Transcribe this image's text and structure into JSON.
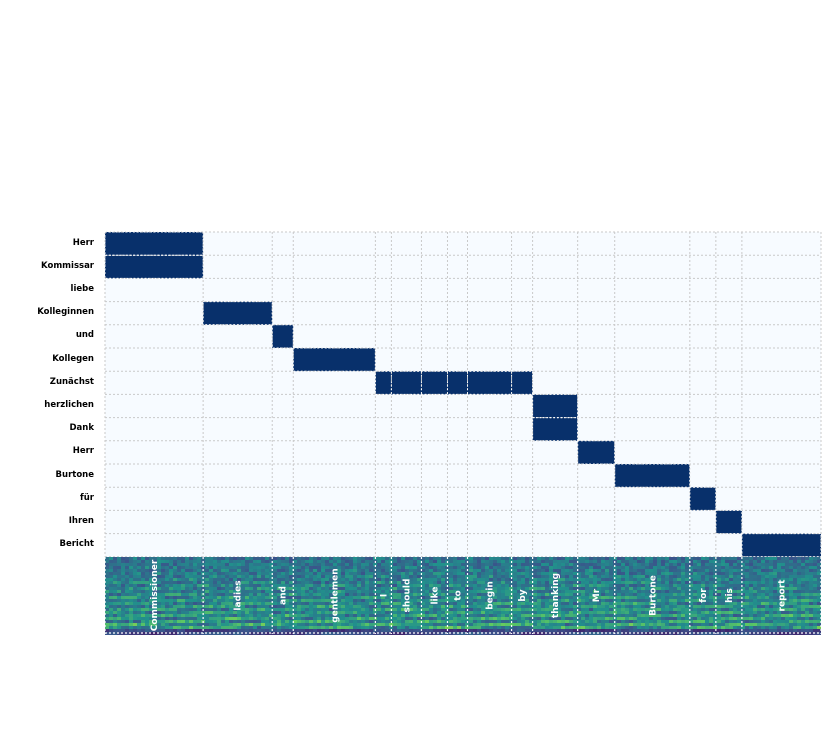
{
  "chart_data": {
    "type": "heatmap",
    "title": "",
    "xlabel": "",
    "ylabel": "",
    "grid": true,
    "rows": [
      "Herr",
      "Kommissar",
      "liebe",
      "Kolleginnen",
      "und",
      "Kollegen",
      "Zunächst",
      "herzlichen",
      "Dank",
      "Herr",
      "Burtone",
      "für",
      "Ihren",
      "Bericht"
    ],
    "columns": [
      "Commissioner",
      "ladies",
      "and",
      "gentlemen",
      "I",
      "should",
      "like",
      "to",
      "begin",
      "by",
      "thanking",
      "Mr",
      "Burtone",
      "for",
      "his",
      "report"
    ],
    "column_durations": [
      0.98,
      0.69,
      0.21,
      0.82,
      0.16,
      0.3,
      0.26,
      0.2,
      0.44,
      0.21,
      0.45,
      0.37,
      0.75,
      0.26,
      0.26,
      0.79
    ],
    "alignment": [
      {
        "row": 0,
        "columns": [
          0
        ]
      },
      {
        "row": 1,
        "columns": [
          0
        ]
      },
      {
        "row": 3,
        "columns": [
          1
        ]
      },
      {
        "row": 4,
        "columns": [
          2
        ]
      },
      {
        "row": 5,
        "columns": [
          3
        ]
      },
      {
        "row": 6,
        "columns": [
          4,
          5,
          6,
          7,
          8,
          9
        ]
      },
      {
        "row": 7,
        "columns": [
          10
        ]
      },
      {
        "row": 8,
        "columns": [
          10
        ]
      },
      {
        "row": 9,
        "columns": [
          11
        ]
      },
      {
        "row": 10,
        "columns": [
          12
        ]
      },
      {
        "row": 11,
        "columns": [
          13
        ]
      },
      {
        "row": 12,
        "columns": [
          14
        ]
      },
      {
        "row": 13,
        "columns": [
          15
        ]
      }
    ],
    "colors": {
      "background": "#f7fbff",
      "filled": "#08306b",
      "grid": "#c9c9c9",
      "colormap": "viridis"
    }
  }
}
